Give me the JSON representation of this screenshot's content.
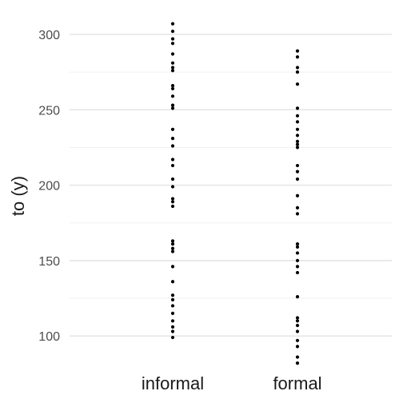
{
  "chart_data": {
    "type": "scatter",
    "ylabel": "to (y)",
    "ylim": [
      81,
      309
    ],
    "yticks": [
      100,
      150,
      200,
      250,
      300
    ],
    "grid": true,
    "categories": [
      "informal",
      "formal"
    ],
    "series": [
      {
        "category": "informal",
        "values": [
          307,
          302,
          297,
          294,
          287,
          281,
          278,
          276,
          266,
          264,
          259,
          253,
          251,
          237,
          231,
          226,
          217,
          213,
          204,
          199,
          191,
          189,
          186,
          163,
          161,
          158,
          156,
          146,
          136,
          127,
          124,
          120,
          115,
          110,
          106,
          103,
          99
        ]
      },
      {
        "category": "formal",
        "values": [
          289,
          285,
          278,
          275,
          267,
          251,
          246,
          242,
          237,
          233,
          229,
          227,
          225,
          213,
          209,
          204,
          193,
          185,
          181,
          161,
          159,
          155,
          150,
          146,
          142,
          126,
          112,
          110,
          107,
          103,
          97,
          93,
          86,
          82
        ]
      }
    ]
  }
}
